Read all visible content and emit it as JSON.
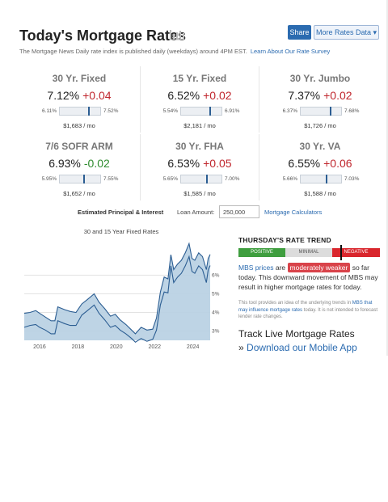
{
  "header": {
    "title": "Today's Mortgage Rates",
    "share_label": "Share",
    "more_label": "More Rates Data ▾",
    "subtitle": "The Mortgage News Daily rate index is published daily (weekdays) around 4PM EST.",
    "subtitle_link": "Learn About Our Rate Survey"
  },
  "rates": [
    {
      "name": "30 Yr. Fixed",
      "rate": "7.12%",
      "change": "+0.04",
      "direction": "up",
      "low": "6.11%",
      "high": "7.52%",
      "position": 0.72,
      "payment": "$1,683 / mo"
    },
    {
      "name": "15 Yr. Fixed",
      "rate": "6.52%",
      "change": "+0.02",
      "direction": "up",
      "low": "5.54%",
      "high": "6.91%",
      "position": 0.72,
      "payment": "$2,181 / mo"
    },
    {
      "name": "30 Yr. Jumbo",
      "rate": "7.37%",
      "change": "+0.02",
      "direction": "up",
      "low": "6.37%",
      "high": "7.68%",
      "position": 0.76,
      "payment": "$1,726 / mo"
    },
    {
      "name": "7/6 SOFR ARM",
      "rate": "6.93%",
      "change": "-0.02",
      "direction": "down",
      "low": "5.95%",
      "high": "7.55%",
      "position": 0.61,
      "payment": "$1,652 / mo"
    },
    {
      "name": "30 Yr. FHA",
      "rate": "6.53%",
      "change": "+0.05",
      "direction": "up",
      "low": "5.65%",
      "high": "7.00%",
      "position": 0.65,
      "payment": "$1,585 / mo"
    },
    {
      "name": "30 Yr. VA",
      "rate": "6.55%",
      "change": "+0.06",
      "direction": "up",
      "low": "5.66%",
      "high": "7.03%",
      "position": 0.65,
      "payment": "$1,588 / mo"
    }
  ],
  "loan": {
    "label": "Estimated Principal & Interest",
    "amount_label": "Loan Amount:",
    "amount_value": "250,000",
    "calculator_link": "Mortgage Calculators"
  },
  "chart_data": {
    "type": "area",
    "title": "30 and 15 Year Fixed Rates",
    "xlabel": "",
    "ylabel": "",
    "x_ticks": [
      "2016",
      "2018",
      "2020",
      "2022",
      "2024"
    ],
    "y_ticks": [
      "3%",
      "4%",
      "5%",
      "6%"
    ],
    "xlim": [
      2015.2,
      2024.9
    ],
    "ylim": [
      2.5,
      7.8
    ],
    "grid": true,
    "series": [
      {
        "name": "30 Year Fixed",
        "x": [
          2015.2,
          2015.5,
          2015.8,
          2016.0,
          2016.3,
          2016.6,
          2016.8,
          2016.95,
          2017.3,
          2017.6,
          2017.9,
          2018.2,
          2018.5,
          2018.85,
          2019.1,
          2019.4,
          2019.7,
          2019.95,
          2020.2,
          2020.5,
          2020.8,
          2021.0,
          2021.3,
          2021.6,
          2021.9,
          2022.1,
          2022.3,
          2022.5,
          2022.7,
          2022.85,
          2023.0,
          2023.2,
          2023.4,
          2023.6,
          2023.8,
          2023.95,
          2024.1,
          2024.3,
          2024.5,
          2024.7,
          2024.8,
          2024.9
        ],
        "y": [
          3.95,
          4.0,
          4.1,
          3.95,
          3.75,
          3.55,
          3.55,
          4.3,
          4.15,
          4.05,
          4.0,
          4.45,
          4.7,
          5.0,
          4.55,
          4.2,
          3.8,
          3.9,
          3.6,
          3.35,
          3.05,
          2.85,
          3.2,
          3.05,
          3.1,
          3.7,
          5.1,
          5.9,
          5.8,
          7.1,
          6.3,
          6.6,
          6.8,
          7.2,
          7.7,
          6.9,
          6.8,
          7.2,
          7.0,
          6.3,
          6.9,
          7.12
        ]
      },
      {
        "name": "15 Year Fixed",
        "x": [
          2015.2,
          2015.5,
          2015.8,
          2016.0,
          2016.3,
          2016.6,
          2016.8,
          2016.95,
          2017.3,
          2017.6,
          2017.9,
          2018.2,
          2018.5,
          2018.85,
          2019.1,
          2019.4,
          2019.7,
          2019.95,
          2020.2,
          2020.5,
          2020.8,
          2021.0,
          2021.3,
          2021.6,
          2021.9,
          2022.1,
          2022.3,
          2022.5,
          2022.7,
          2022.85,
          2023.0,
          2023.2,
          2023.4,
          2023.6,
          2023.8,
          2023.95,
          2024.1,
          2024.3,
          2024.5,
          2024.7,
          2024.8,
          2024.9
        ],
        "y": [
          3.2,
          3.3,
          3.35,
          3.2,
          3.05,
          2.85,
          2.85,
          3.55,
          3.4,
          3.3,
          3.3,
          3.85,
          4.1,
          4.4,
          3.95,
          3.6,
          3.2,
          3.3,
          3.05,
          2.85,
          2.6,
          2.4,
          2.6,
          2.45,
          2.55,
          3.05,
          4.4,
          5.1,
          5.05,
          6.5,
          5.6,
          5.9,
          6.1,
          6.5,
          7.0,
          6.2,
          6.1,
          6.5,
          6.3,
          5.6,
          6.3,
          6.52
        ]
      }
    ]
  },
  "trend": {
    "title": "THURSDAY'S RATE TREND",
    "positive": "POSITIVE",
    "minimal": "MINIMAL",
    "negative": "NEGATIVE",
    "mbs_link": "MBS prices",
    "are": "are",
    "badge": "moderately weaker",
    "text_rest": "so far today. This downward movement of MBS may result in higher mortgage rates for today.",
    "note_a": "This tool provides an idea of the underlying trends in",
    "note_link": "MBS that may influence mortgage rates",
    "note_b": "today. It is not intended to forecast lender rate changes."
  },
  "live": {
    "title": "Track Live Mortgage Rates",
    "arrow": "»",
    "link": "Download our Mobile App"
  },
  "colors": {
    "accent": "#2b6bb0",
    "up": "#c0262d",
    "down": "#2f8c2f",
    "area_fill": "#b7cfe2",
    "line": "#2b5d92"
  }
}
